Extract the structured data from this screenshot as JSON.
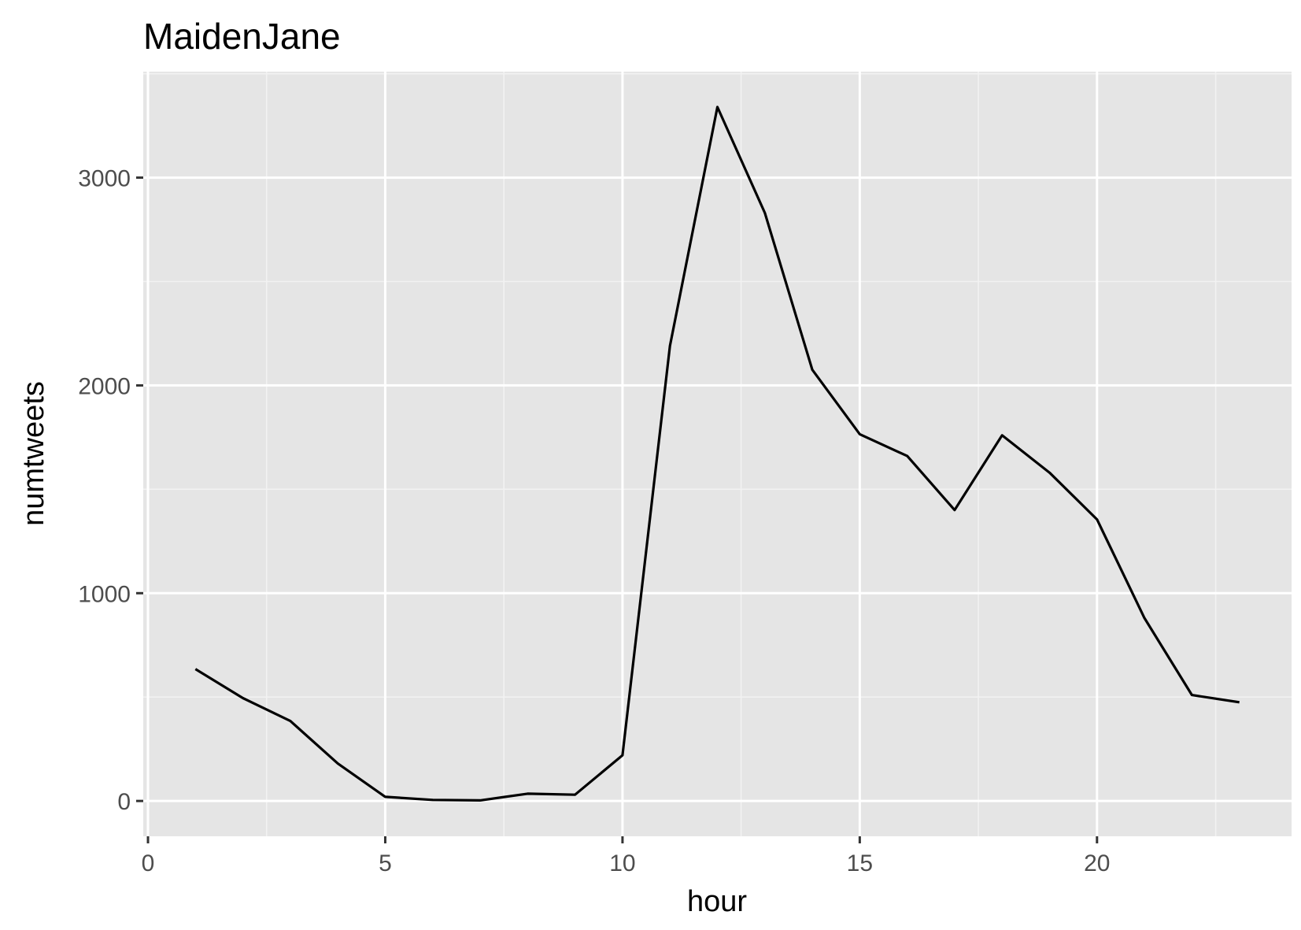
{
  "chart_data": {
    "type": "line",
    "title": "MaidenJane",
    "xlabel": "hour",
    "ylabel": "numtweets",
    "x": [
      1,
      2,
      3,
      4,
      5,
      6,
      7,
      8,
      9,
      10,
      11,
      12,
      13,
      14,
      15,
      16,
      17,
      18,
      19,
      20,
      21,
      22,
      23
    ],
    "series": [
      {
        "values": [
          635,
          495,
          385,
          180,
          20,
          5,
          3,
          35,
          30,
          220,
          2190,
          3340,
          2830,
          2075,
          1765,
          1660,
          1400,
          1760,
          1580,
          1355,
          880,
          510,
          475
        ]
      }
    ],
    "xlim": [
      -0.1,
      24.1
    ],
    "ylim": [
      -170,
      3510
    ],
    "x_ticks": [
      0,
      5,
      10,
      15,
      20
    ],
    "y_ticks": [
      0,
      1000,
      2000,
      3000
    ],
    "x_tick_labels": [
      "0",
      "5",
      "10",
      "15",
      "20"
    ],
    "y_tick_labels": [
      "0",
      "1000",
      "2000",
      "3000"
    ],
    "grid": true,
    "colors": {
      "panel_background": "#e5e5e5",
      "grid_major": "#ffffff",
      "grid_minor": "#f2f2f2",
      "line": "#000000",
      "tick": "#333333",
      "tick_text": "#4d4d4d",
      "text": "#000000"
    }
  }
}
